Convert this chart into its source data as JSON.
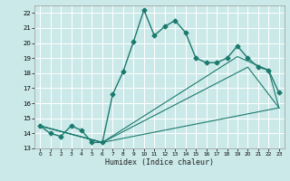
{
  "title": "",
  "xlabel": "Humidex (Indice chaleur)",
  "xlim": [
    -0.5,
    23.5
  ],
  "ylim": [
    13,
    22.5
  ],
  "yticks": [
    13,
    14,
    15,
    16,
    17,
    18,
    19,
    20,
    21,
    22
  ],
  "xticks": [
    0,
    1,
    2,
    3,
    4,
    5,
    6,
    7,
    8,
    9,
    10,
    11,
    12,
    13,
    14,
    15,
    16,
    17,
    18,
    19,
    20,
    21,
    22,
    23
  ],
  "bg_color": "#cce9e9",
  "grid_color": "#ffffff",
  "line_color": "#1a7a6e",
  "lines": [
    {
      "x": [
        0,
        1,
        2,
        3,
        4,
        5,
        6,
        7,
        8,
        9,
        10,
        11,
        12,
        13,
        14,
        15,
        16,
        17,
        18,
        19,
        20,
        21,
        22,
        23
      ],
      "y": [
        14.5,
        14.0,
        13.8,
        14.5,
        14.2,
        13.4,
        13.4,
        16.6,
        18.1,
        20.1,
        22.2,
        20.5,
        21.1,
        21.5,
        20.7,
        19.0,
        18.7,
        18.7,
        19.0,
        19.8,
        19.0,
        18.4,
        18.2,
        16.7
      ],
      "has_marker": true,
      "markersize": 2.5,
      "linewidth": 1.0
    },
    {
      "x": [
        0,
        6,
        23
      ],
      "y": [
        14.5,
        13.4,
        15.7
      ],
      "has_marker": false,
      "linewidth": 0.8
    },
    {
      "x": [
        0,
        6,
        20,
        23
      ],
      "y": [
        14.5,
        13.4,
        18.4,
        15.7
      ],
      "has_marker": false,
      "linewidth": 0.8
    },
    {
      "x": [
        0,
        6,
        19,
        22,
        23
      ],
      "y": [
        14.5,
        13.4,
        19.1,
        18.2,
        15.7
      ],
      "has_marker": false,
      "linewidth": 0.8
    }
  ]
}
